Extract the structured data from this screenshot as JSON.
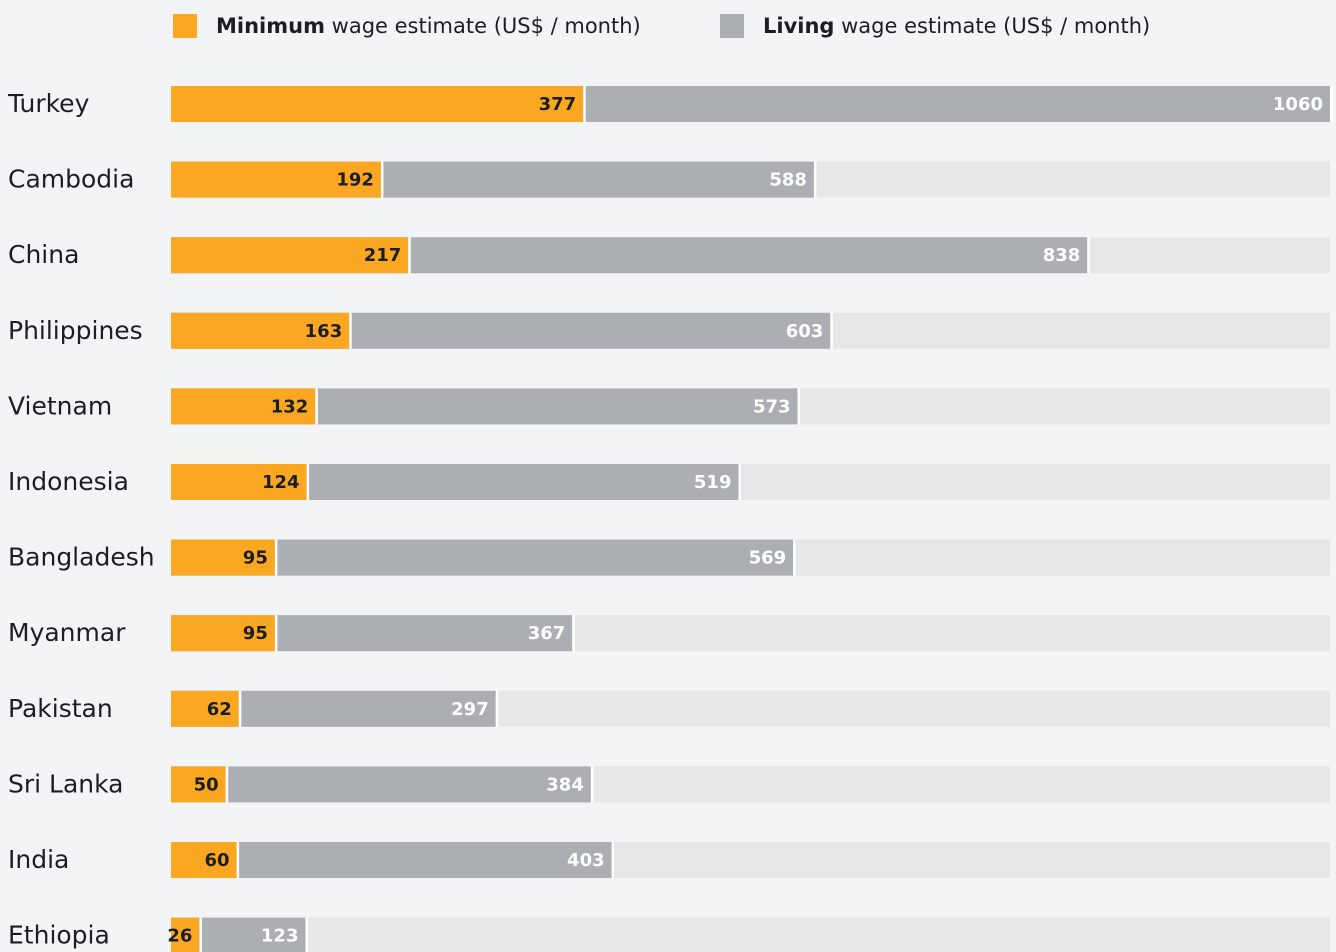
{
  "chart_data": {
    "type": "bar",
    "mode": "overlay",
    "categories": [
      "Turkey",
      "Cambodia",
      "China",
      "Philippines",
      "Vietnam",
      "Indonesia",
      "Bangladesh",
      "Myanmar",
      "Pakistan",
      "Sri Lanka",
      "India",
      "Ethiopia"
    ],
    "series": [
      {
        "name": "Living wage estimate (US$ / month)",
        "color": "#abaeb3",
        "label_color": "#ffffff",
        "values": [
          1060,
          588,
          838,
          603,
          573,
          519,
          569,
          367,
          297,
          384,
          403,
          123
        ]
      },
      {
        "name": "Minimum wage estimate (US$ / month)",
        "color": "#fba722",
        "label_color": "#1b1f24",
        "values": [
          377,
          192,
          217,
          163,
          132,
          124,
          95,
          95,
          62,
          50,
          60,
          26
        ]
      }
    ],
    "legend_order": [
      1,
      0
    ],
    "track_color": "#e6e7e9",
    "xlim": [
      0,
      1060
    ]
  }
}
